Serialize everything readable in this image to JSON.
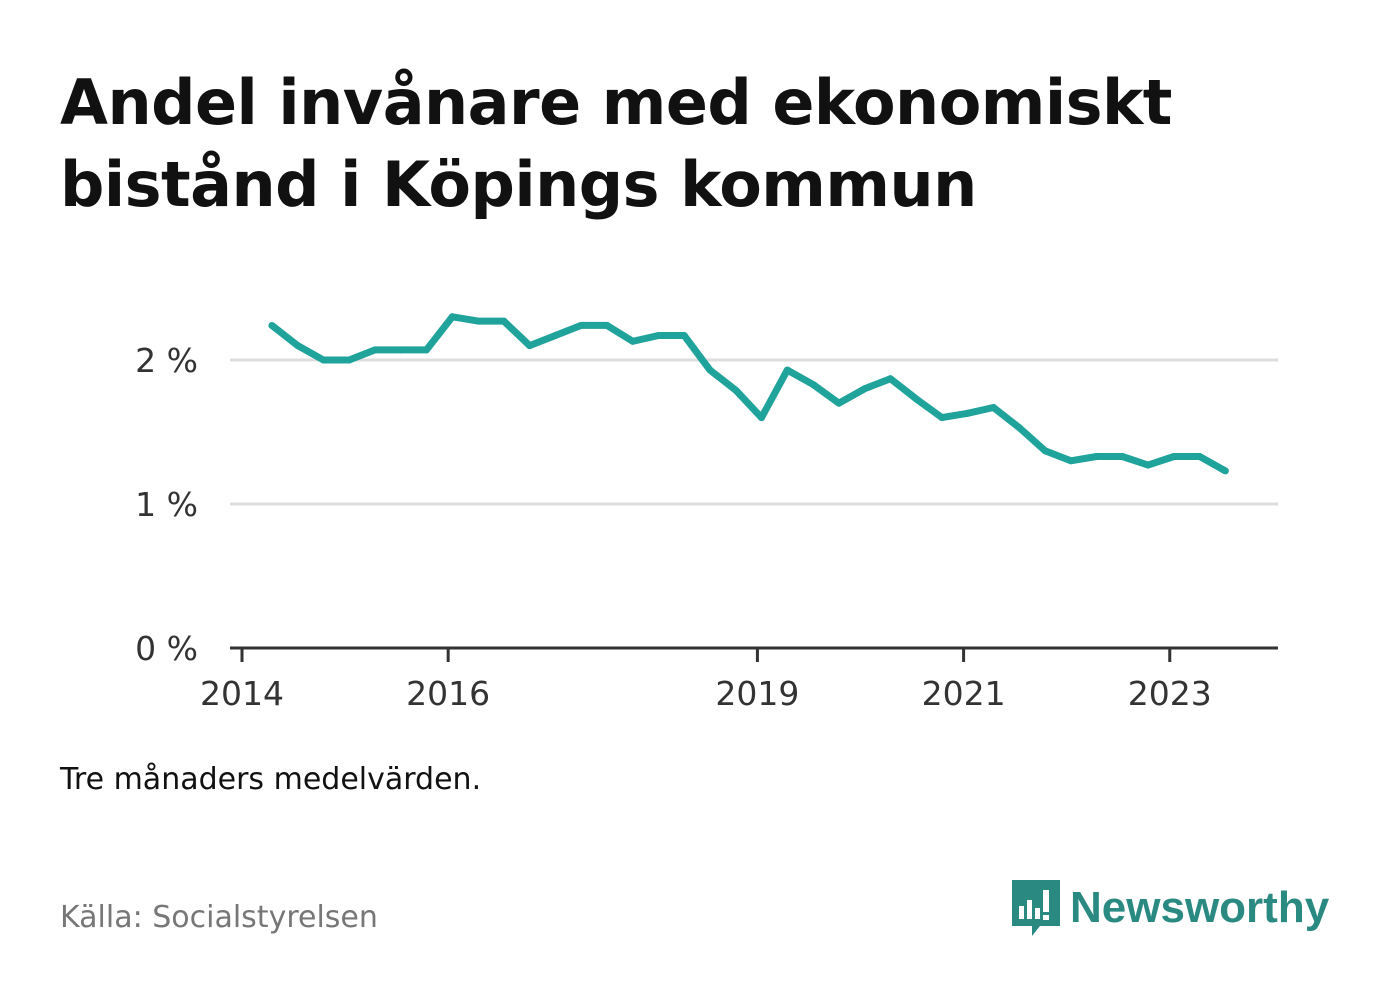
{
  "title": "Andel invånare med ekonomiskt bistånd i Köpings kommun",
  "note": "Tre månaders medelvärden.",
  "source": "Källa: Socialstyrelsen",
  "brand": {
    "name": "Newsworthy",
    "icon": "bar-chart-speech-bubble-icon"
  },
  "colors": {
    "line": "#1fa39a",
    "grid": "#dddddd",
    "axis": "#333333",
    "brand": "#2a8a82"
  },
  "chart_data": {
    "type": "line",
    "title": "Andel invånare med ekonomiskt bistånd i Köpings kommun",
    "xlabel": "",
    "ylabel": "",
    "grid": true,
    "xlim": [
      2014,
      2024.05
    ],
    "ylim": [
      0,
      2.5
    ],
    "y_ticks": [
      {
        "value": 0,
        "label": "0 %"
      },
      {
        "value": 1,
        "label": "1 %"
      },
      {
        "value": 2,
        "label": "2 %"
      }
    ],
    "x_ticks": [
      {
        "value": 2014,
        "label": "2014"
      },
      {
        "value": 2016,
        "label": "2016"
      },
      {
        "value": 2019,
        "label": "2019"
      },
      {
        "value": 2021,
        "label": "2021"
      },
      {
        "value": 2023,
        "label": "2023"
      }
    ],
    "series": [
      {
        "x": [
          2014.29,
          2014.54,
          2014.79,
          2015.04,
          2015.29,
          2015.54,
          2015.79,
          2016.04,
          2016.29,
          2016.54,
          2016.79,
          2017.04,
          2017.29,
          2017.54,
          2017.79,
          2018.04,
          2018.29,
          2018.54,
          2018.79,
          2019.04,
          2019.29,
          2019.54,
          2019.79,
          2020.04,
          2020.29,
          2020.54,
          2020.79,
          2021.04,
          2021.29,
          2021.54,
          2021.79,
          2022.04,
          2022.29,
          2022.54,
          2022.79,
          2023.04,
          2023.29,
          2023.54
        ],
        "values": [
          2.24,
          2.1,
          2.0,
          2.0,
          2.07,
          2.07,
          2.07,
          2.3,
          2.27,
          2.27,
          2.1,
          2.17,
          2.24,
          2.24,
          2.13,
          2.17,
          2.17,
          1.93,
          1.79,
          1.6,
          1.93,
          1.83,
          1.7,
          1.8,
          1.87,
          1.73,
          1.6,
          1.63,
          1.67,
          1.53,
          1.37,
          1.3,
          1.33,
          1.33,
          1.27,
          1.33,
          1.33,
          1.23
        ]
      }
    ]
  }
}
